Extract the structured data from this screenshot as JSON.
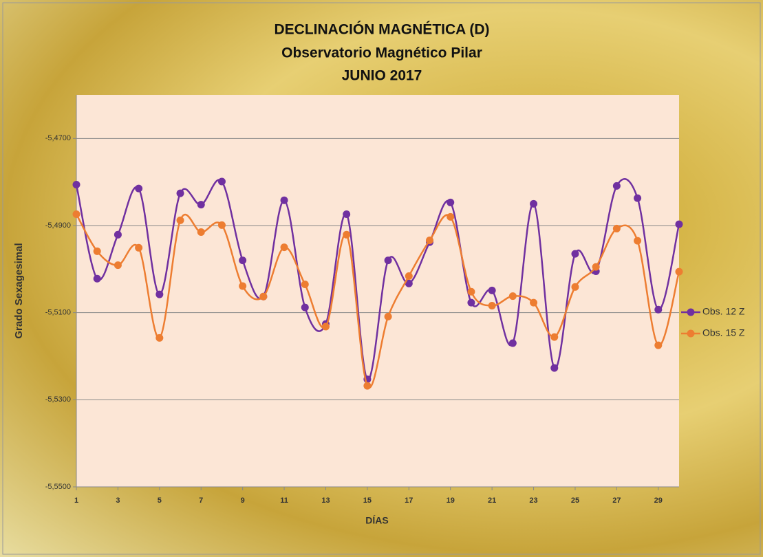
{
  "chart_data": {
    "type": "line",
    "title_lines": [
      "DECLINACIÓN MAGNÉTICA (D)",
      "Observatorio Magnético Pilar",
      "JUNIO 2017"
    ],
    "x_label": "DÍAS",
    "y_label": "Grado Sexagesimal",
    "x": [
      1,
      2,
      3,
      4,
      5,
      6,
      7,
      8,
      9,
      10,
      11,
      12,
      13,
      14,
      15,
      16,
      17,
      18,
      19,
      20,
      21,
      22,
      23,
      24,
      25,
      26,
      27,
      28,
      29,
      30
    ],
    "xlim": [
      1,
      30
    ],
    "xticks": [
      1,
      3,
      5,
      7,
      9,
      11,
      13,
      15,
      17,
      19,
      21,
      23,
      25,
      27,
      29
    ],
    "ylim": [
      -5.55,
      -5.46
    ],
    "yticks": [
      {
        "value": -5.55,
        "label": "-5,5500"
      },
      {
        "value": -5.53,
        "label": "-5,5300"
      },
      {
        "value": -5.51,
        "label": "-5,5100"
      },
      {
        "value": -5.49,
        "label": "-5,4900"
      },
      {
        "value": -5.47,
        "label": "-5,4700"
      }
    ],
    "grid": true,
    "smooth": true,
    "legend": "right",
    "series": [
      {
        "name": "Obs. 12 Z",
        "color": "#7030a0",
        "values": [
          -5.4806,
          -5.5022,
          -5.4921,
          -5.4815,
          -5.5058,
          -5.4826,
          -5.4852,
          -5.4799,
          -5.498,
          -5.5063,
          -5.4842,
          -5.5088,
          -5.5126,
          -5.4874,
          -5.5253,
          -5.498,
          -5.5033,
          -5.4938,
          -5.4847,
          -5.5077,
          -5.5049,
          -5.517,
          -5.485,
          -5.5227,
          -5.4965,
          -5.5005,
          -5.4809,
          -5.4837,
          -5.5093,
          -5.4897
        ]
      },
      {
        "name": "Obs. 15 Z",
        "color": "#ed7d31",
        "values": [
          -5.4874,
          -5.4959,
          -5.4991,
          -5.4951,
          -5.5158,
          -5.4888,
          -5.4915,
          -5.4899,
          -5.5039,
          -5.5063,
          -5.495,
          -5.5035,
          -5.5132,
          -5.4921,
          -5.5268,
          -5.5109,
          -5.5016,
          -5.4934,
          -5.488,
          -5.5052,
          -5.5084,
          -5.5062,
          -5.5077,
          -5.5156,
          -5.5041,
          -5.4995,
          -5.4907,
          -5.4935,
          -5.5175,
          -5.5006
        ]
      }
    ]
  }
}
